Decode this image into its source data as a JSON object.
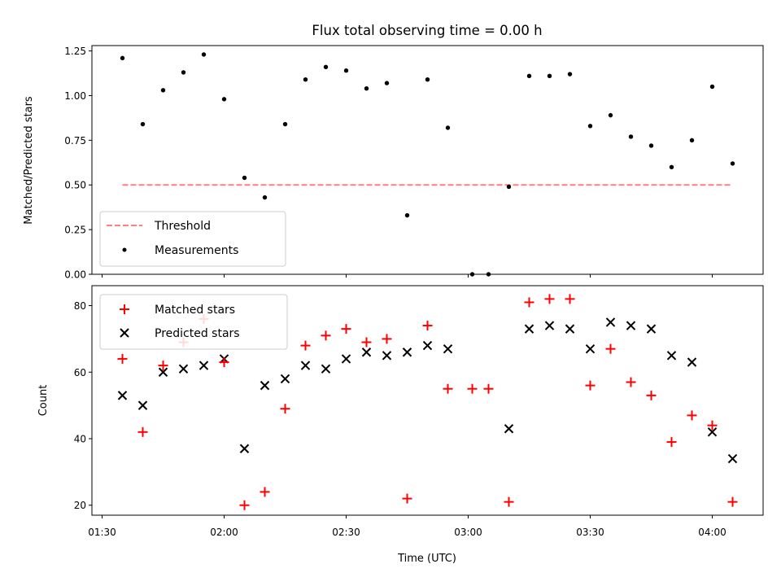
{
  "chart_data": {
    "title": "Flux total observing time = 0.00 h",
    "xlabel": "Time (UTC)",
    "x_range_minutes": [
      87.5,
      252.5
    ],
    "x_tick_minutes": [
      90,
      120,
      150,
      180,
      210,
      240
    ],
    "x_ticks": [
      "01:30",
      "02:00",
      "02:30",
      "03:00",
      "03:30",
      "04:00"
    ],
    "x_minutes": [
      95,
      100,
      105,
      110,
      115,
      120,
      125,
      130,
      135,
      140,
      145,
      150,
      155,
      160,
      165,
      170,
      175,
      181,
      185,
      190,
      195,
      200,
      205,
      210,
      215,
      220,
      225,
      230,
      235,
      240,
      245
    ],
    "top": {
      "type": "scatter",
      "ylabel": "Matched/Predicted stars",
      "ylim": [
        0,
        1.28
      ],
      "yticks": [
        0,
        0.25,
        0.5,
        0.75,
        1.0,
        1.25
      ],
      "ytick_labels": [
        "0.00",
        "0.25",
        "0.50",
        "0.75",
        "1.00",
        "1.25"
      ],
      "threshold": {
        "name": "Threshold",
        "value": 0.5,
        "x_range_minutes": [
          95,
          245
        ],
        "color": "#ff7f7f"
      },
      "measurements": {
        "name": "Measurements",
        "color": "#000000",
        "values": [
          1.21,
          0.84,
          1.03,
          1.13,
          1.23,
          0.98,
          0.54,
          0.43,
          0.84,
          1.09,
          1.16,
          1.14,
          1.04,
          1.07,
          0.33,
          1.09,
          0.82,
          0.0,
          0.0,
          0.49,
          1.11,
          1.11,
          1.12,
          0.83,
          0.89,
          0.77,
          0.72,
          0.6,
          0.75,
          1.05,
          0.62
        ]
      },
      "legend": {
        "position": "lower-left",
        "entries": [
          "Threshold",
          "Measurements"
        ]
      }
    },
    "bottom": {
      "type": "scatter",
      "ylabel": "Count",
      "ylim": [
        17,
        86
      ],
      "yticks": [
        20,
        40,
        60,
        80
      ],
      "ytick_labels": [
        "20",
        "40",
        "60",
        "80"
      ],
      "series": [
        {
          "name": "Matched stars",
          "marker": "+",
          "color": "#ff0000",
          "values": [
            64,
            42,
            62,
            69,
            76,
            63,
            20,
            24,
            49,
            68,
            71,
            73,
            69,
            70,
            22,
            74,
            55,
            55,
            55,
            21,
            81,
            82,
            82,
            56,
            67,
            57,
            53,
            39,
            47,
            44,
            21
          ]
        },
        {
          "name": "Predicted stars",
          "marker": "x",
          "color": "#000000",
          "values": [
            53,
            50,
            60,
            61,
            62,
            64,
            37,
            56,
            58,
            62,
            61,
            64,
            66,
            65,
            66,
            68,
            67,
            null,
            null,
            43,
            73,
            74,
            73,
            67,
            75,
            74,
            73,
            65,
            63,
            42,
            34
          ]
        }
      ],
      "legend": {
        "position": "top-left",
        "entries": [
          "Matched stars",
          "Predicted stars"
        ]
      }
    }
  }
}
